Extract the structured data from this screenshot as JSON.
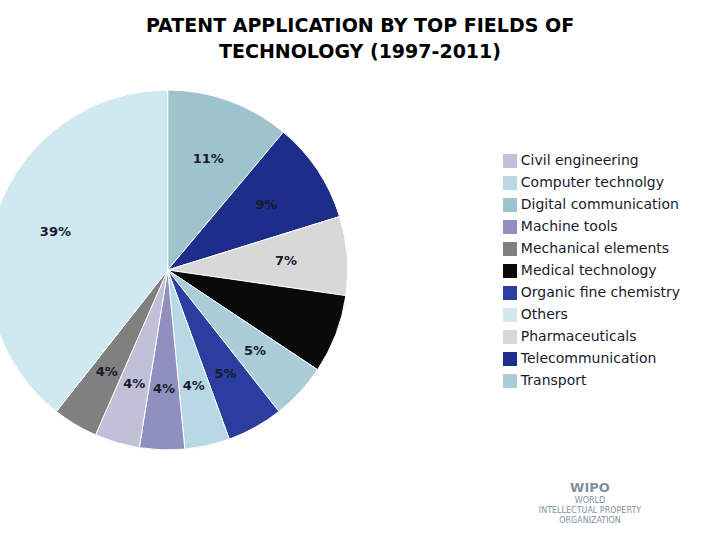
{
  "chart_data": {
    "type": "pie",
    "title": "PATENT APPLICATION BY TOP FIELDS OF\nTECHNOLOGY (1997-2011)",
    "categories": [
      "Digital communication",
      "Telecommunication",
      "Pharmaceuticals",
      "Medical technology",
      "Transport",
      "Organic fine chemistry",
      "Computer technolgy",
      "Machine tools",
      "Civil engineering",
      "Mechanical elements",
      "Others"
    ],
    "values": [
      11,
      9,
      7,
      7,
      5,
      5,
      4,
      4,
      4,
      4,
      39
    ],
    "value_labels": [
      "11%",
      "9%",
      "7%",
      null,
      "5%",
      "5%",
      "4%",
      "4%",
      "4%",
      "4%",
      "39%"
    ],
    "data_labels": true,
    "colors": [
      "#9DC3CC",
      "#1F2D8A",
      "#D8D8D8",
      "#0A0A0A",
      "#AACDD8",
      "#2B3EA0",
      "#B8D8E5",
      "#9090C0",
      "#C0C0D8",
      "#808080",
      "#D0E8F0"
    ],
    "legend": "right",
    "annotations": [
      "WIPO",
      "WORLD",
      "INTELLECTUAL PROPERTY",
      "ORGANIZATION"
    ]
  }
}
